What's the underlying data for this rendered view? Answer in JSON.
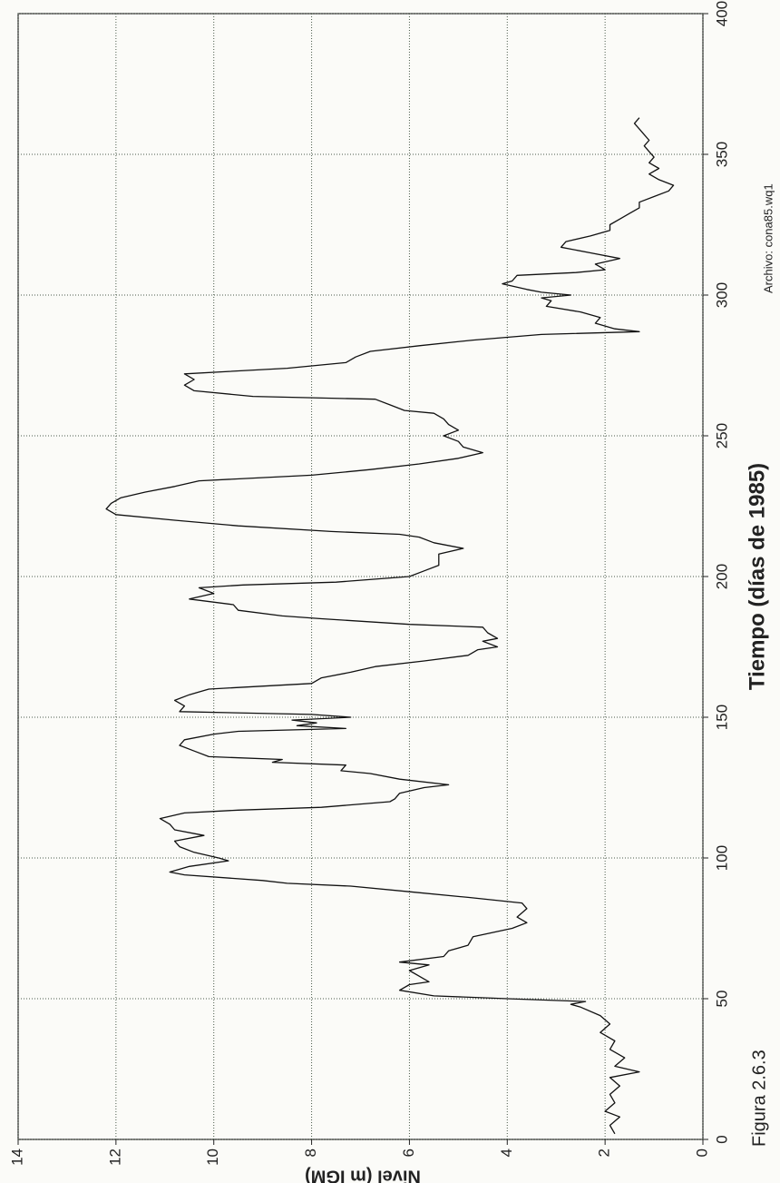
{
  "chart_data": {
    "type": "line",
    "x_label": "Tiempo (días de 1985)",
    "y_label": "Nivel (m IGM)",
    "caption": "Figura 2.6.3",
    "note": "Archivo: cona85.wq1",
    "xlim": [
      0,
      400
    ],
    "xticks": [
      0,
      50,
      100,
      150,
      200,
      250,
      300,
      350,
      400
    ],
    "ylim": [
      0,
      14
    ],
    "yticks": [
      0,
      2,
      4,
      6,
      8,
      10,
      12,
      14
    ],
    "grid": true,
    "color": "#111111",
    "x": [
      2,
      5,
      8,
      10,
      13,
      16,
      19,
      22,
      24,
      26,
      29,
      32,
      35,
      38,
      41,
      44,
      47,
      48,
      49,
      50,
      51,
      53,
      55,
      56,
      58,
      60,
      62,
      63,
      65,
      67,
      69,
      72,
      75,
      77,
      79,
      82,
      84,
      86,
      88,
      90,
      91,
      92,
      94,
      95,
      97,
      99,
      100,
      102,
      104,
      106,
      108,
      110,
      112,
      114,
      116,
      117,
      118,
      120,
      121,
      123,
      125,
      126,
      128,
      130,
      131,
      133,
      134,
      135,
      136,
      138,
      140,
      142,
      144,
      145,
      146,
      147,
      148,
      149,
      150,
      151,
      152,
      154,
      156,
      158,
      160,
      162,
      164,
      166,
      168,
      170,
      172,
      174,
      175,
      177,
      178,
      180,
      182,
      183,
      185,
      186,
      188,
      190,
      192,
      194,
      196,
      197,
      198,
      200,
      202,
      204,
      206,
      208,
      210,
      212,
      214,
      215,
      216,
      218,
      220,
      222,
      224,
      226,
      228,
      230,
      232,
      234,
      236,
      238,
      240,
      242,
      244,
      246,
      248,
      250,
      252,
      254,
      256,
      258,
      259,
      261,
      263,
      264,
      266,
      268,
      270,
      272,
      274,
      276,
      278,
      280,
      282,
      284,
      286,
      287,
      288,
      290,
      292,
      294,
      296,
      298,
      299,
      300,
      301,
      302,
      304,
      305,
      307,
      308,
      309,
      311,
      313,
      315,
      317,
      319,
      321,
      323,
      325,
      327,
      329,
      331,
      333,
      335,
      337,
      339,
      341,
      343,
      345,
      347,
      349,
      351,
      353,
      355,
      357,
      359,
      361,
      363
    ],
    "values": [
      1.8,
      1.9,
      1.7,
      2.0,
      1.8,
      1.9,
      1.7,
      1.9,
      1.3,
      1.8,
      1.6,
      1.9,
      1.8,
      2.1,
      1.9,
      2.1,
      2.5,
      2.7,
      2.4,
      4.0,
      5.5,
      6.2,
      6.0,
      5.6,
      5.8,
      6.0,
      5.6,
      6.2,
      5.3,
      5.2,
      4.8,
      4.7,
      3.9,
      3.6,
      3.8,
      3.6,
      3.7,
      4.8,
      6.0,
      7.2,
      8.5,
      9.0,
      10.6,
      10.9,
      10.5,
      9.7,
      9.9,
      10.4,
      10.7,
      10.8,
      10.2,
      10.8,
      10.9,
      11.1,
      10.6,
      9.5,
      7.8,
      6.4,
      6.3,
      6.2,
      5.7,
      5.2,
      6.2,
      6.8,
      7.4,
      7.3,
      8.8,
      8.6,
      10.1,
      10.4,
      10.7,
      10.6,
      10.0,
      9.5,
      7.3,
      8.3,
      7.9,
      8.4,
      7.2,
      8.0,
      10.7,
      10.6,
      10.8,
      10.5,
      10.1,
      8.0,
      7.8,
      7.2,
      6.7,
      5.7,
      4.8,
      4.6,
      4.2,
      4.5,
      4.2,
      4.4,
      4.5,
      6.0,
      7.8,
      8.6,
      9.5,
      9.6,
      10.5,
      10.0,
      10.3,
      9.4,
      7.5,
      6.0,
      5.7,
      5.4,
      5.4,
      5.4,
      4.9,
      5.5,
      5.8,
      6.2,
      7.6,
      9.5,
      10.8,
      12.0,
      12.2,
      12.1,
      11.9,
      11.4,
      10.8,
      10.3,
      8.0,
      6.8,
      5.8,
      5.0,
      4.5,
      4.9,
      5.0,
      5.3,
      5.0,
      5.2,
      5.3,
      5.5,
      6.1,
      6.4,
      6.7,
      9.2,
      10.4,
      10.6,
      10.4,
      10.6,
      8.5,
      7.3,
      7.1,
      6.8,
      5.8,
      4.7,
      3.3,
      1.3,
      1.8,
      2.2,
      2.1,
      2.5,
      3.2,
      3.1,
      3.3,
      2.7,
      3.3,
      3.6,
      4.1,
      3.9,
      3.8,
      2.6,
      2.0,
      2.2,
      1.7,
      2.3,
      2.9,
      2.8,
      2.3,
      1.9,
      1.9,
      1.7,
      1.5,
      1.3,
      1.3,
      1.0,
      0.7,
      0.6,
      0.9,
      1.1,
      0.9,
      1.1,
      1.0,
      1.1,
      1.2,
      1.1,
      1.2,
      1.3,
      1.4,
      1.3
    ]
  }
}
